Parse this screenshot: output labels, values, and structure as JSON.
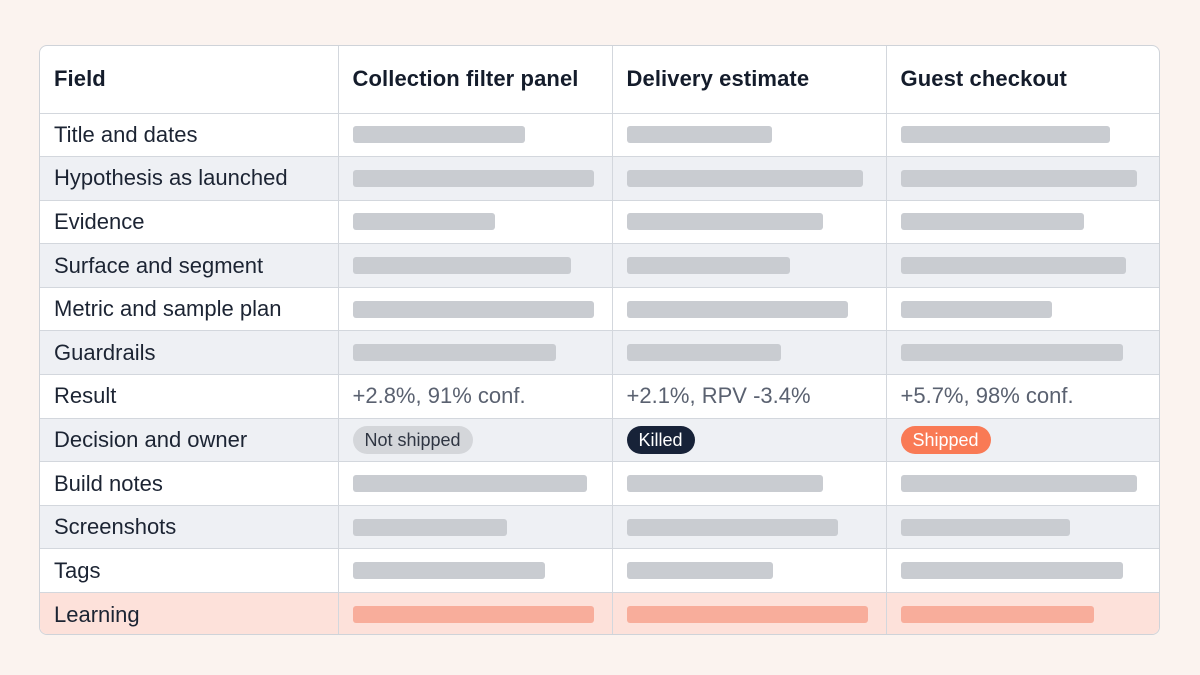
{
  "table": {
    "headers": [
      "Field",
      "Collection filter panel",
      "Delivery estimate",
      "Guest checkout"
    ],
    "rows": [
      {
        "field": "Title and dates"
      },
      {
        "field": "Hypothesis as launched"
      },
      {
        "field": "Evidence"
      },
      {
        "field": "Surface and segment"
      },
      {
        "field": "Metric and sample plan"
      },
      {
        "field": "Guardrails"
      },
      {
        "field": "Result",
        "values": [
          "+2.8%, 91% conf.",
          "+2.1%, RPV -3.4%",
          "+5.7%, 98% conf."
        ]
      },
      {
        "field": "Decision and owner",
        "badges": [
          "Not shipped",
          "Killed",
          "Shipped"
        ]
      },
      {
        "field": "Build notes"
      },
      {
        "field": "Screenshots"
      },
      {
        "field": "Tags"
      },
      {
        "field": "Learning"
      }
    ]
  },
  "colors": {
    "page_background": "#fbf3ef",
    "row_stripe": "#eef0f4",
    "placeholder_bar": "#c9ccd1",
    "learning_row": "#fde1da",
    "learning_bar": "#f8ad9b",
    "badge_not_shipped": "#d4d6da",
    "badge_killed": "#172238",
    "badge_shipped": "#f97a55"
  }
}
